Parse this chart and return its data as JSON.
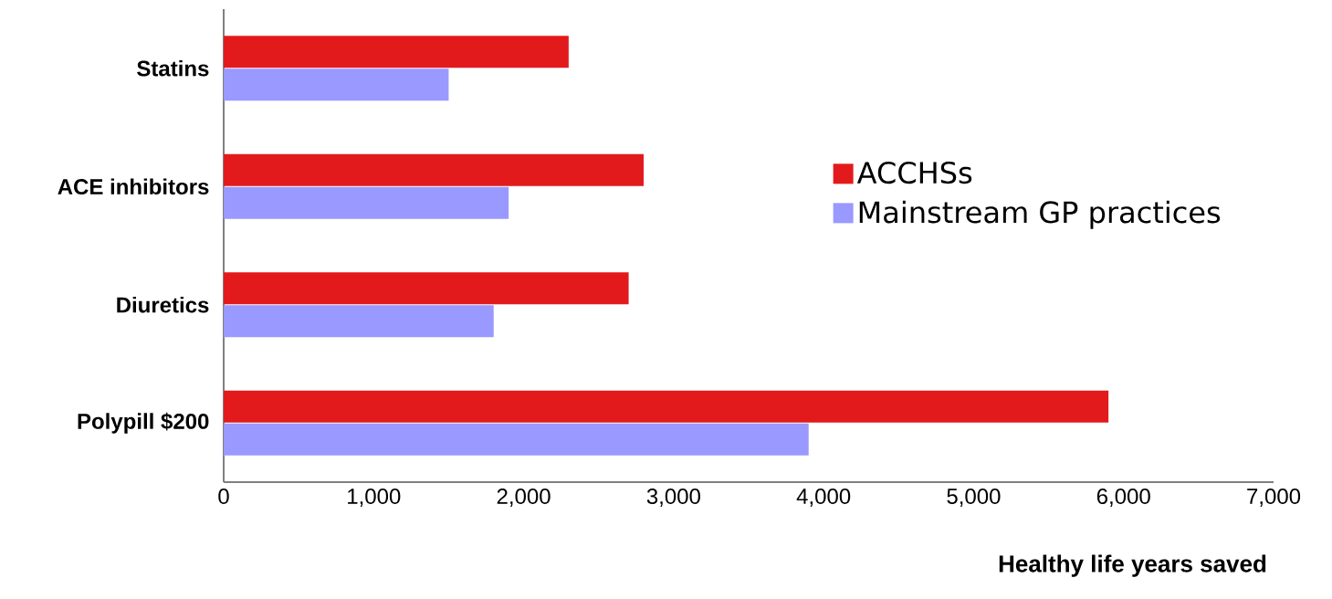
{
  "chart_data": {
    "type": "bar",
    "orientation": "horizontal",
    "categories": [
      "Statins",
      "ACE inhibitors",
      "Diuretics",
      "Polypill $200"
    ],
    "series": [
      {
        "name": "ACCHSs",
        "color": "#e31a1c",
        "values": [
          2300,
          2800,
          2700,
          5900
        ]
      },
      {
        "name": "Mainstream GP practices",
        "color": "#9999ff",
        "values": [
          1500,
          1900,
          1800,
          3900
        ]
      }
    ],
    "xlabel": "Healthy life years saved",
    "xlim": [
      0,
      7000
    ],
    "xticks": [
      0,
      {
        "value": 1000,
        "label": "1,000"
      },
      {
        "value": 2000,
        "label": "2,000"
      },
      {
        "value": 3000,
        "label": "3,000"
      },
      {
        "value": 4000,
        "label": "4,000"
      },
      {
        "value": 5000,
        "label": "5,000"
      },
      {
        "value": 6000,
        "label": "6,000"
      },
      {
        "value": 7000,
        "label": "7,000"
      }
    ],
    "grid": false,
    "legend": "right"
  }
}
